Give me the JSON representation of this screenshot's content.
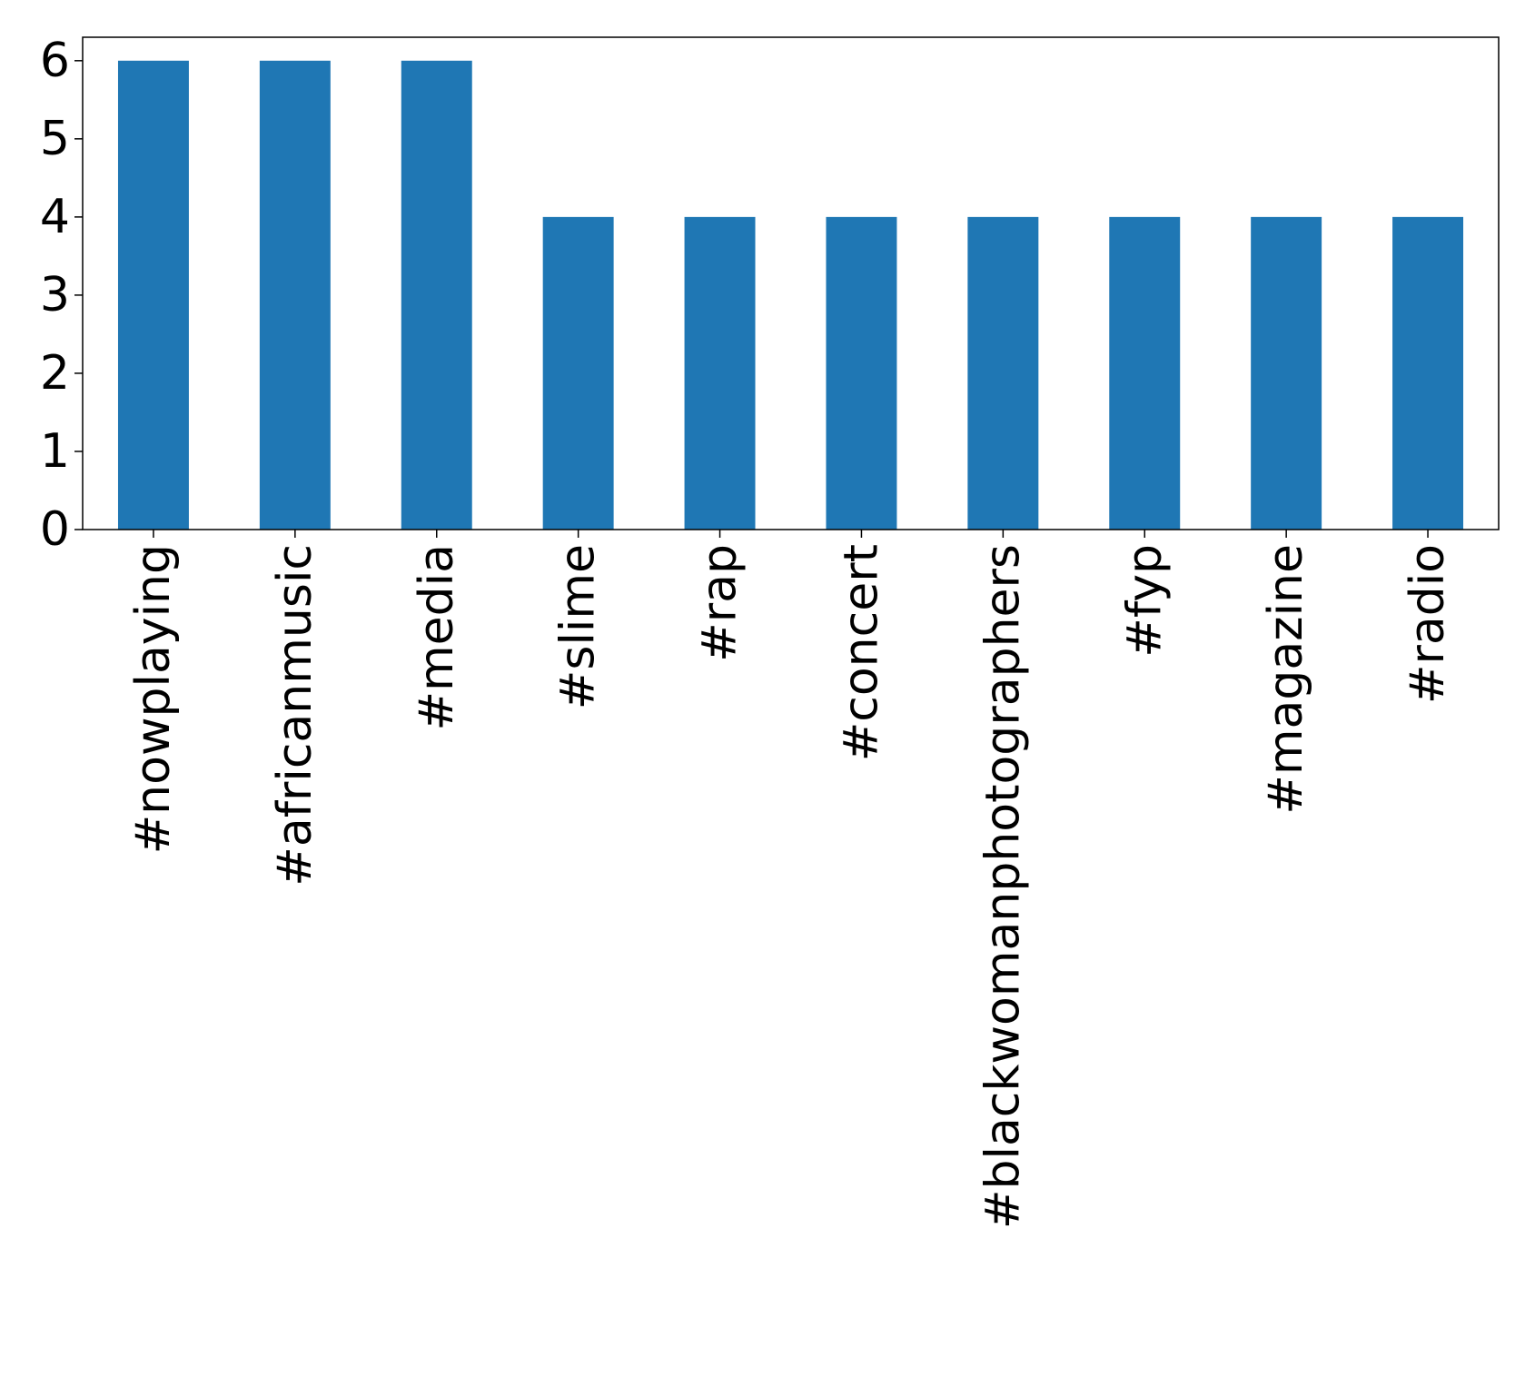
{
  "chart_data": {
    "type": "bar",
    "categories": [
      "#nowplaying",
      "#africanmusic",
      "#media",
      "#slime",
      "#rap",
      "#concert",
      "#blackwomanphotographers",
      "#fyp",
      "#magazine",
      "#radio"
    ],
    "values": [
      6,
      6,
      6,
      4,
      4,
      4,
      4,
      4,
      4,
      4
    ],
    "title": "",
    "xlabel": "",
    "ylabel": "",
    "ylim": [
      0,
      6.3
    ],
    "yticks": [
      0,
      1,
      2,
      3,
      4,
      5,
      6
    ],
    "grid": false,
    "legend": "none",
    "bar_color": "#1f77b4",
    "axis_color": "#000000"
  }
}
